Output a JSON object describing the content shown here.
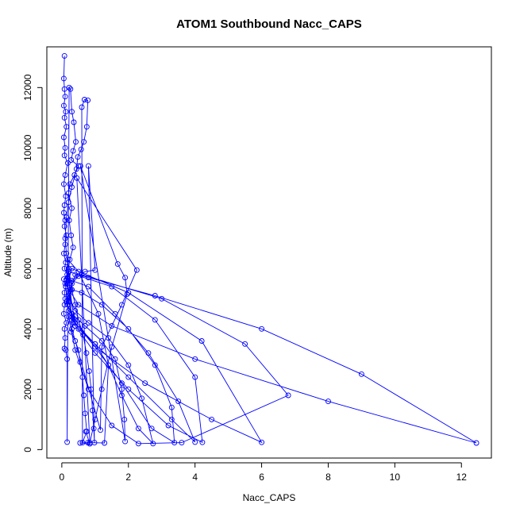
{
  "chart_data": {
    "type": "line",
    "title": "ATOM1 Southbound Nacc_CAPS",
    "xlabel": "Nacc_CAPS",
    "ylabel": "Altitude (m)",
    "xlim": [
      -0.45,
      12.9
    ],
    "ylim": [
      -280,
      13350
    ],
    "x_ticks": [
      0,
      2,
      4,
      6,
      8,
      10,
      12
    ],
    "y_ticks": [
      0,
      2000,
      4000,
      6000,
      8000,
      10000,
      12000
    ],
    "grid": false,
    "legend": "none",
    "series_color": "#0000ff",
    "point_marker": "open-circle",
    "series": [
      {
        "values": [
          [
            0.08,
            13050
          ],
          [
            0.06,
            12300
          ],
          [
            0.08,
            11950
          ],
          [
            0.1,
            11700
          ],
          [
            0.06,
            11400
          ],
          [
            0.12,
            11200
          ],
          [
            0.08,
            11000
          ],
          [
            0.14,
            10700
          ],
          [
            0.06,
            10350
          ],
          [
            0.1,
            10000
          ],
          [
            0.08,
            9750
          ],
          [
            0.18,
            9500
          ],
          [
            0.1,
            9100
          ],
          [
            0.06,
            8800
          ],
          [
            0.12,
            8400
          ],
          [
            0.08,
            8100
          ],
          [
            0.06,
            7850
          ],
          [
            0.1,
            7600
          ],
          [
            0.08,
            7400
          ],
          [
            0.14,
            7100
          ],
          [
            0.1,
            6800
          ],
          [
            0.06,
            6500
          ],
          [
            0.12,
            6200
          ],
          [
            0.08,
            6000
          ],
          [
            0.16,
            5800
          ],
          [
            0.06,
            5650
          ],
          [
            0.12,
            5400
          ],
          [
            0.08,
            5200
          ],
          [
            0.1,
            5000
          ],
          [
            0.08,
            4800
          ],
          [
            0.06,
            4500
          ],
          [
            0.14,
            4200
          ],
          [
            0.08,
            4000
          ],
          [
            0.1,
            3700
          ],
          [
            0.08,
            3350
          ],
          [
            0.12,
            3300
          ],
          [
            0.16,
            3000
          ],
          [
            0.16,
            250
          ],
          [
            0.22,
            12000
          ],
          [
            0.26,
            11950
          ],
          [
            0.3,
            11200
          ],
          [
            0.36,
            10850
          ],
          [
            0.42,
            10200
          ],
          [
            0.34,
            9900
          ],
          [
            0.28,
            9600
          ],
          [
            0.5,
            9400
          ],
          [
            0.38,
            9100
          ],
          [
            0.24,
            8800
          ],
          [
            0.2,
            8500
          ],
          [
            0.3,
            8000
          ],
          [
            0.22,
            7600
          ],
          [
            0.28,
            7100
          ],
          [
            0.34,
            6700
          ],
          [
            0.24,
            6300
          ],
          [
            0.2,
            6000
          ],
          [
            0.18,
            5700
          ],
          [
            0.26,
            5300
          ],
          [
            0.22,
            4900
          ],
          [
            0.3,
            4500
          ],
          [
            0.34,
            4200
          ],
          [
            0.28,
            3900
          ],
          [
            0.4,
            3600
          ],
          [
            0.5,
            3300
          ],
          [
            0.55,
            2900
          ],
          [
            0.62,
            2400
          ],
          [
            0.66,
            1800
          ],
          [
            0.7,
            1200
          ],
          [
            0.75,
            600
          ],
          [
            0.62,
            230
          ],
          [
            0.6,
            11350
          ],
          [
            0.68,
            11600
          ],
          [
            0.78,
            11580
          ],
          [
            0.75,
            10700
          ],
          [
            0.66,
            10200
          ],
          [
            0.58,
            9950
          ],
          [
            0.48,
            9700
          ],
          [
            0.44,
            9300
          ],
          [
            0.3,
            8700
          ],
          [
            0.2,
            8200
          ],
          [
            0.14,
            7700
          ],
          [
            0.1,
            7000
          ],
          [
            0.14,
            6500
          ],
          [
            0.2,
            5900
          ],
          [
            0.3,
            5300
          ],
          [
            0.4,
            4800
          ],
          [
            0.5,
            4300
          ],
          [
            0.64,
            3800
          ],
          [
            0.74,
            3200
          ],
          [
            0.82,
            2600
          ],
          [
            0.88,
            2000
          ],
          [
            0.92,
            1300
          ],
          [
            0.96,
            700
          ],
          [
            0.98,
            230
          ],
          [
            0.8,
            9400
          ],
          [
            1.0,
            5950
          ],
          [
            0.7,
            5900
          ],
          [
            0.5,
            5750
          ],
          [
            0.3,
            5500
          ],
          [
            0.2,
            5200
          ],
          [
            0.14,
            4900
          ],
          [
            0.2,
            4600
          ],
          [
            0.4,
            4400
          ],
          [
            0.7,
            4100
          ],
          [
            1.2,
            3600
          ],
          [
            1.6,
            3000
          ],
          [
            1.8,
            2000
          ],
          [
            1.88,
            1000
          ],
          [
            1.9,
            270
          ],
          [
            0.56,
            9400
          ],
          [
            1.68,
            6150
          ],
          [
            1.9,
            5700
          ],
          [
            1.96,
            5150
          ],
          [
            1.5,
            3400
          ],
          [
            1.2,
            2000
          ],
          [
            1.0,
            1000
          ],
          [
            0.84,
            230
          ],
          [
            0.45,
            9000
          ],
          [
            2.25,
            5950
          ],
          [
            1.8,
            4800
          ],
          [
            1.2,
            3400
          ],
          [
            1.16,
            650
          ],
          [
            0.3,
            4000
          ],
          [
            0.2,
            6000
          ],
          [
            0.14,
            5600
          ],
          [
            0.2,
            5100
          ],
          [
            0.4,
            4600
          ],
          [
            0.8,
            4200
          ],
          [
            1.4,
            3700
          ],
          [
            2.0,
            2800
          ],
          [
            2.4,
            1700
          ],
          [
            2.74,
            200
          ],
          [
            2.3,
            700
          ],
          [
            1.8,
            1800
          ],
          [
            1.4,
            2800
          ],
          [
            1.0,
            3500
          ],
          [
            0.5,
            4000
          ],
          [
            0.3,
            4400
          ],
          [
            0.18,
            4800
          ],
          [
            0.3,
            5300
          ],
          [
            0.6,
            5200
          ],
          [
            1.2,
            4800
          ],
          [
            2.0,
            4000
          ],
          [
            2.8,
            2800
          ],
          [
            3.3,
            1400
          ],
          [
            3.38,
            230
          ],
          [
            2.7,
            700
          ],
          [
            1.8,
            2200
          ],
          [
            1.0,
            3400
          ],
          [
            0.4,
            4200
          ],
          [
            0.2,
            4900
          ],
          [
            0.3,
            5600
          ],
          [
            0.8,
            5400
          ],
          [
            1.6,
            4500
          ],
          [
            2.6,
            3200
          ],
          [
            3.5,
            1600
          ],
          [
            4.0,
            250
          ],
          [
            3.3,
            1000
          ],
          [
            2.0,
            2400
          ],
          [
            1.0,
            3500
          ],
          [
            0.3,
            4300
          ],
          [
            0.2,
            5000
          ],
          [
            0.4,
            5800
          ],
          [
            1.5,
            5400
          ],
          [
            2.8,
            4300
          ],
          [
            4.0,
            2400
          ],
          [
            4.22,
            240
          ],
          [
            3.2,
            800
          ],
          [
            2.0,
            2000
          ],
          [
            1.0,
            3200
          ],
          [
            0.4,
            4100
          ],
          [
            0.2,
            5600
          ],
          [
            0.3,
            6000
          ],
          [
            2.0,
            5200
          ],
          [
            4.2,
            3600
          ],
          [
            6.0,
            240
          ],
          [
            4.5,
            1000
          ],
          [
            2.5,
            2200
          ],
          [
            1.0,
            3400
          ],
          [
            0.4,
            4300
          ],
          [
            0.15,
            5500
          ],
          [
            0.2,
            5900
          ],
          [
            0.8,
            5700
          ],
          [
            2.8,
            5100
          ],
          [
            6.0,
            4000
          ],
          [
            9.0,
            2500
          ],
          [
            12.45,
            220
          ],
          [
            8.0,
            1600
          ],
          [
            4.0,
            3000
          ],
          [
            1.5,
            4100
          ],
          [
            0.5,
            4800
          ],
          [
            0.1,
            5500
          ],
          [
            0.6,
            5800
          ],
          [
            3.0,
            5000
          ],
          [
            5.5,
            3500
          ],
          [
            6.8,
            1800
          ],
          [
            3.6,
            230
          ],
          [
            2.3,
            200
          ],
          [
            1.5,
            800
          ],
          [
            0.8,
            2000
          ],
          [
            0.4,
            3300
          ],
          [
            0.2,
            4400
          ],
          [
            0.12,
            5400
          ],
          [
            0.18,
            6300
          ],
          [
            0.5,
            5900
          ],
          [
            1.1,
            4500
          ],
          [
            1.4,
            2800
          ],
          [
            1.28,
            220
          ],
          [
            0.78,
            230
          ],
          [
            0.55,
            220
          ],
          [
            0.84,
            190
          ],
          [
            0.72,
            600
          ]
        ]
      }
    ]
  }
}
